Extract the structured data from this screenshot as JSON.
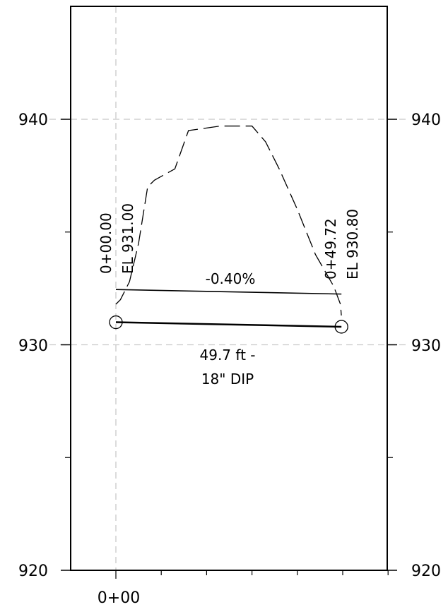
{
  "colors": {
    "frame": "#000000",
    "grid": "#c8c8c8",
    "pipe": "#000000",
    "ground": "#000000",
    "background": "#ffffff"
  },
  "elevation_axis": {
    "min": 920,
    "max": 944,
    "labels": [
      "920",
      "930",
      "940"
    ],
    "label_values": [
      920,
      930,
      940
    ],
    "minor_ticks": [
      925,
      935
    ]
  },
  "station_axis": {
    "label": "0+00",
    "min_ft": -10,
    "max_ft": 60,
    "tick_every_ft": 10
  },
  "ground_profile": {
    "style": "dashed",
    "points_ft_el": [
      [
        0,
        931.8
      ],
      [
        1,
        932.0
      ],
      [
        3,
        932.8
      ],
      [
        5,
        934.5
      ],
      [
        7,
        937.0
      ],
      [
        8.5,
        937.3
      ],
      [
        13,
        937.8
      ],
      [
        16,
        939.5
      ],
      [
        23,
        939.7
      ],
      [
        30,
        939.7
      ],
      [
        33,
        939.0
      ],
      [
        36,
        937.8
      ],
      [
        40,
        936.0
      ],
      [
        44,
        934.0
      ],
      [
        48,
        932.6
      ],
      [
        49.5,
        931.8
      ],
      [
        49.7,
        931.3
      ]
    ]
  },
  "pipe": {
    "start": {
      "station_ft": 0,
      "elevation": 931.0,
      "station_label": "0+00.00",
      "elevation_label": "EL 931.00"
    },
    "end": {
      "station_ft": 49.72,
      "elevation": 930.8,
      "station_label": "0+49.72",
      "elevation_label": "EL 930.80"
    },
    "slope_label": "-0.40%",
    "length_label": "49.7 ft -",
    "material_label": "18\" DIP",
    "slope_line_offset_el": 1.45
  }
}
